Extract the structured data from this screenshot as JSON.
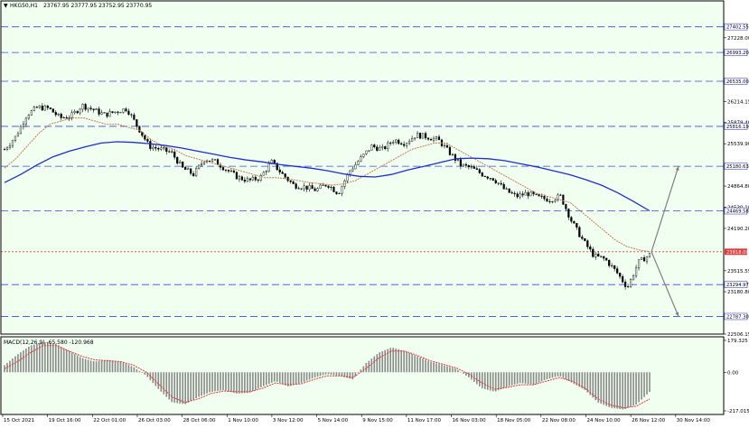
{
  "window": {
    "symbol_label": "HKG50,H1",
    "ohlc_label": "23767.95 23777.95 23752.95 23770.95",
    "macd_label": "MACD(12,26,9) -65.580 -120.968"
  },
  "colors": {
    "background": "#f0fff0",
    "frame": "#000000",
    "candle": "#000000",
    "ma_slow": "#1f2fcc",
    "ma_fast": "#c47a5a",
    "hline": "#3b4bd6",
    "current_price": "#e03a3a",
    "arrow": "#808080",
    "macd_hist": "#8a8a8a",
    "macd_signal": "#e03a3a"
  },
  "chart_data": {
    "type": "candlestick",
    "price_axis": {
      "range": [
        22506.15,
        27700
      ],
      "ticks": [
        "27228.00",
        "26214.15",
        "25879.40",
        "25539.90",
        "24864.80",
        "24530.10",
        "24190.20",
        "23515.55",
        "23180.80",
        "22506.15"
      ]
    },
    "price_levels": [
      {
        "label": "27402.55",
        "value": 27402.55
      },
      {
        "label": "26993.20",
        "value": 26993.2
      },
      {
        "label": "26535.00",
        "value": 26535.0
      },
      {
        "label": "25816.19",
        "value": 25816.19
      },
      {
        "label": "25180.63",
        "value": 25180.63
      },
      {
        "label": "24469.58",
        "value": 24469.58
      },
      {
        "label": "23294.97",
        "value": 23294.97
      },
      {
        "label": "22787.30",
        "value": 22787.3
      }
    ],
    "current_price": {
      "label": "23818.00",
      "value": 23818.0
    },
    "close_trace": [
      25450,
      25650,
      26000,
      26120,
      26100,
      25950,
      25980,
      26150,
      26080,
      26000,
      26050,
      26100,
      25800,
      25500,
      25450,
      25400,
      25150,
      25050,
      25300,
      25250,
      25120,
      25000,
      24950,
      25000,
      25250,
      25050,
      24880,
      24850,
      24800,
      24900,
      24750,
      25100,
      25300,
      25500,
      25450,
      25600,
      25550,
      25680,
      25650,
      25600,
      25400,
      25200,
      25150,
      25050,
      24980,
      24800,
      24700,
      24750,
      24680,
      24650,
      24700,
      24300,
      24000,
      23750,
      23700,
      23500,
      23250,
      23650,
      23770
    ],
    "ma_fast_trace": [
      25150,
      25300,
      25500,
      25700,
      25850,
      25900,
      25950,
      25950,
      25900,
      25850,
      25850,
      25800,
      25750,
      25600,
      25500,
      25450,
      25350,
      25300,
      25250,
      25200,
      25150,
      25100,
      25050,
      25000,
      25000,
      24980,
      24950,
      24920,
      24900,
      24880,
      24900,
      24950,
      25050,
      25150,
      25250,
      25350,
      25450,
      25500,
      25550,
      25550,
      25450,
      25350,
      25250,
      25150,
      25050,
      24950,
      24850,
      24750,
      24700,
      24650,
      24600,
      24450,
      24300,
      24150,
      24000,
      23900,
      23850,
      23820
    ],
    "ma_slow_trace": [
      24920,
      25050,
      25200,
      25330,
      25420,
      25490,
      25550,
      25570,
      25560,
      25540,
      25510,
      25470,
      25420,
      25370,
      25320,
      25280,
      25250,
      25210,
      25180,
      25150,
      25110,
      25060,
      25020,
      25010,
      25050,
      25120,
      25180,
      25240,
      25300,
      25310,
      25300,
      25270,
      25220,
      25170,
      25110,
      25050,
      24970,
      24880,
      24760,
      24620,
      24470
    ],
    "time_axis": [
      "15 Oct 2021",
      "19 Oct 16:00",
      "22 Oct 01:00",
      "26 Oct 03:00",
      "28 Oct 06:00",
      "1 Nov 10:00",
      "3 Nov 12:00",
      "5 Nov 14:00",
      "9 Nov 15:00",
      "11 Nov 17:00",
      "16 Nov 03:00",
      "18 Nov 05:00",
      "22 Nov 08:00",
      "24 Nov 10:00",
      "26 Nov 12:00",
      "30 Nov 14:00"
    ],
    "arrows": {
      "up_target": 25180.63,
      "down_target": 22787.3
    },
    "macd": {
      "range": [
        -217.015,
        179.325
      ],
      "ticks": [
        "179.325",
        "0.00",
        "-217.015"
      ],
      "hist_trace": [
        40,
        100,
        150,
        170,
        160,
        120,
        80,
        60,
        70,
        60,
        30,
        -20,
        -100,
        -170,
        -180,
        -140,
        -110,
        -100,
        -120,
        -115,
        -80,
        -50,
        -80,
        -60,
        -30,
        -10,
        -20,
        -40,
        50,
        110,
        140,
        120,
        90,
        60,
        40,
        20,
        -30,
        -90,
        -110,
        -80,
        -60,
        -70,
        -40,
        -20,
        -60,
        -100,
        -170,
        -200,
        -210,
        -180,
        -110
      ],
      "signal_trace": [
        20,
        60,
        110,
        150,
        150,
        120,
        90,
        70,
        65,
        60,
        40,
        0,
        -70,
        -140,
        -170,
        -150,
        -120,
        -105,
        -110,
        -110,
        -90,
        -60,
        -70,
        -65,
        -40,
        -20,
        -20,
        -30,
        20,
        80,
        120,
        120,
        95,
        65,
        45,
        25,
        -10,
        -60,
        -95,
        -85,
        -70,
        -70,
        -50,
        -30,
        -50,
        -90,
        -150,
        -185,
        -200,
        -190,
        -150
      ]
    }
  }
}
